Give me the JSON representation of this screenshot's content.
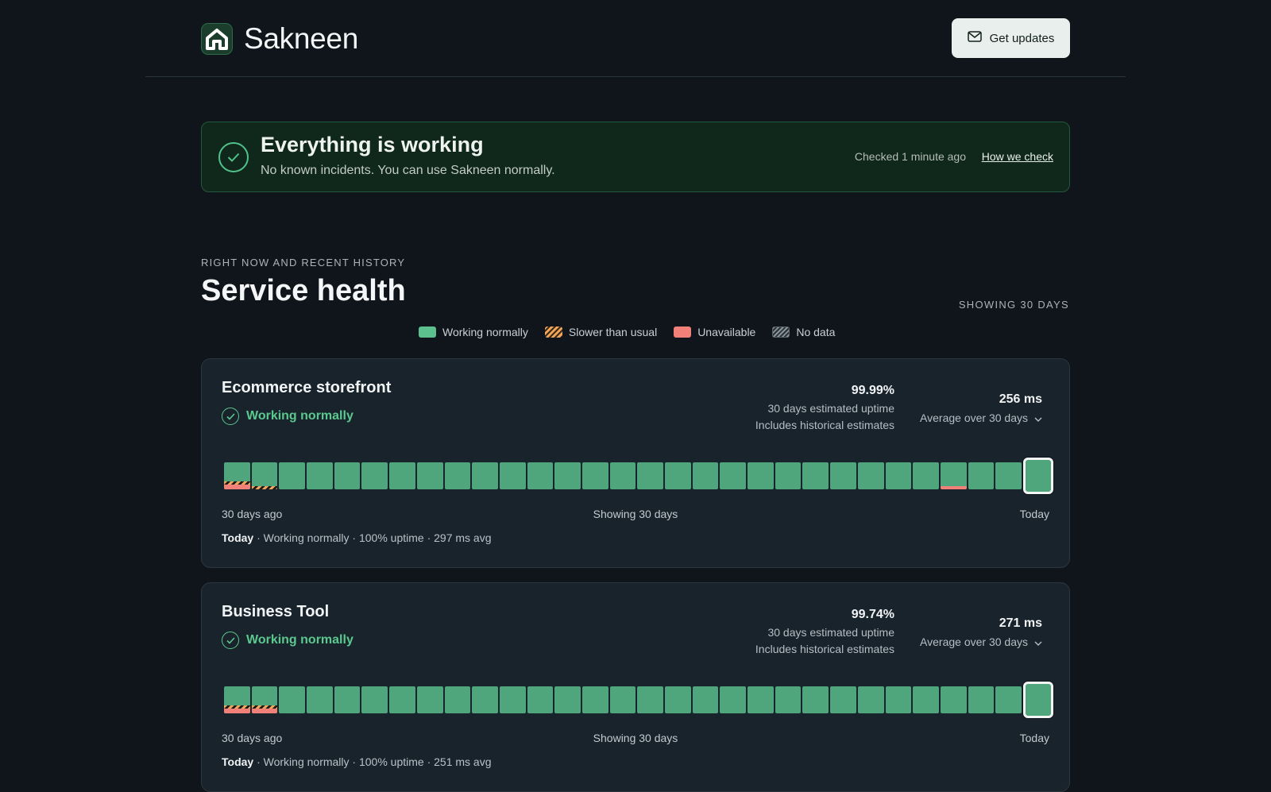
{
  "header": {
    "brand": "Sakneen",
    "get_updates_label": "Get updates"
  },
  "banner": {
    "title": "Everything is working",
    "subtitle": "No known incidents. You can use Sakneen normally.",
    "checked": "Checked 1 minute ago",
    "link": "How we check"
  },
  "section": {
    "eyebrow": "RIGHT NOW AND RECENT HISTORY",
    "title": "Service health",
    "showing": "SHOWING 30 DAYS"
  },
  "legend": [
    {
      "label": "Working normally",
      "kind": "green"
    },
    {
      "label": "Slower than usual",
      "kind": "slow"
    },
    {
      "label": "Unavailable",
      "kind": "red"
    },
    {
      "label": "No data",
      "kind": "nodata"
    }
  ],
  "colors": {
    "working": "#4fa57c",
    "slow": "#f0a55a",
    "unavailable": "#f08078",
    "accent": "#5bc98f"
  },
  "services": [
    {
      "name": "Ecommerce storefront",
      "status": "Working normally",
      "uptime": "99.99%",
      "uptime_line1": "30 days estimated uptime",
      "uptime_line2": "Includes historical estimates",
      "latency": "256 ms",
      "latency_label": "Average over 30 days",
      "axis_left": "30 days ago",
      "axis_mid": "Showing 30 days",
      "axis_right": "Today",
      "today_label": "Today",
      "today_detail": " · Working normally · 100% uptime · 297 ms avg",
      "days": [
        "slow-red",
        "slow",
        "ok",
        "ok",
        "ok",
        "ok",
        "ok",
        "ok",
        "ok",
        "ok",
        "ok",
        "ok",
        "ok",
        "ok",
        "ok",
        "ok",
        "ok",
        "ok",
        "ok",
        "ok",
        "ok",
        "ok",
        "ok",
        "ok",
        "ok",
        "ok",
        "red",
        "ok",
        "ok",
        "ok"
      ]
    },
    {
      "name": "Business Tool",
      "status": "Working normally",
      "uptime": "99.74%",
      "uptime_line1": "30 days estimated uptime",
      "uptime_line2": "Includes historical estimates",
      "latency": "271 ms",
      "latency_label": "Average over 30 days",
      "axis_left": "30 days ago",
      "axis_mid": "Showing 30 days",
      "axis_right": "Today",
      "today_label": "Today",
      "today_detail": " · Working normally · 100% uptime · 251 ms avg",
      "days": [
        "slow-red",
        "slow-red",
        "ok",
        "ok",
        "ok",
        "ok",
        "ok",
        "ok",
        "ok",
        "ok",
        "ok",
        "ok",
        "ok",
        "ok",
        "ok",
        "ok",
        "ok",
        "ok",
        "ok",
        "ok",
        "ok",
        "ok",
        "ok",
        "ok",
        "ok",
        "ok",
        "ok",
        "ok",
        "ok",
        "ok"
      ]
    }
  ]
}
